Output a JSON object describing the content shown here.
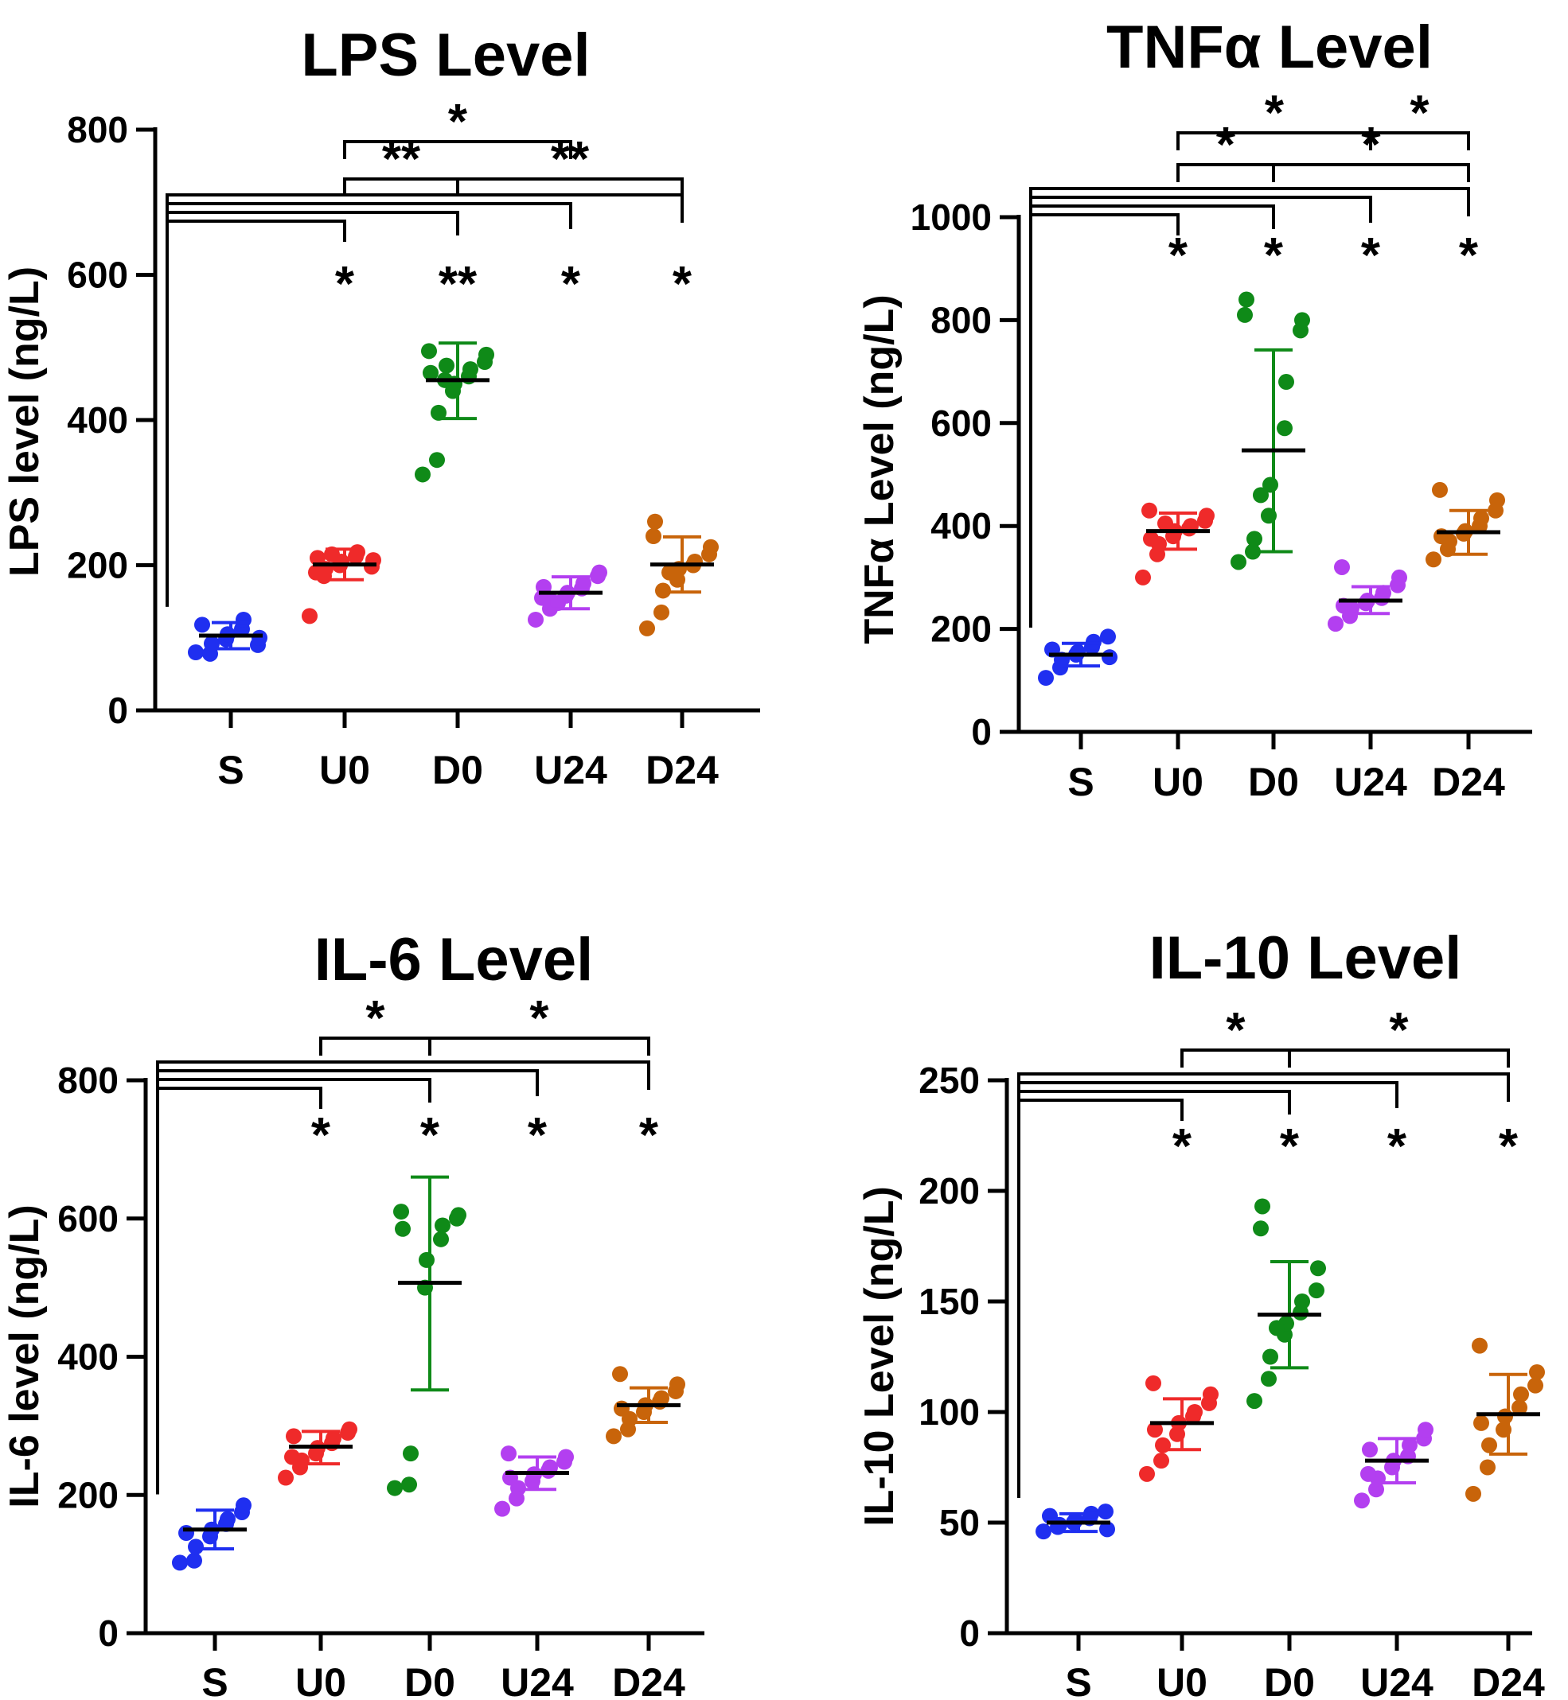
{
  "colors": {
    "S": "#1f2ff0",
    "U0": "#ef2a2a",
    "D0": "#0f8a18",
    "U24": "#b33ff0",
    "D24": "#c8640a",
    "axis": "#000000"
  },
  "chart_data": [
    {
      "type": "scatter",
      "title": "LPS Level",
      "ylabel": "LPS level (ng/L)",
      "ylim": [
        0,
        800
      ],
      "yticks": [
        "0",
        "200",
        "400",
        "600",
        "800"
      ],
      "categories": [
        "S",
        "U0",
        "D0",
        "U24",
        "D24"
      ],
      "groups": [
        {
          "name": "S",
          "mean": 103,
          "sd_low": 85,
          "sd_high": 121,
          "points": [
            80,
            78,
            92,
            98,
            105,
            112,
            125,
            90,
            100,
            118
          ]
        },
        {
          "name": "U0",
          "mean": 201,
          "sd_low": 180,
          "sd_high": 222,
          "points": [
            130,
            185,
            195,
            200,
            205,
            212,
            218,
            198,
            207,
            190,
            210,
            215
          ]
        },
        {
          "name": "D0",
          "mean": 455,
          "sd_low": 402,
          "sd_high": 506,
          "points": [
            325,
            345,
            410,
            440,
            450,
            460,
            470,
            480,
            490,
            495,
            465,
            455,
            475
          ]
        },
        {
          "name": "U24",
          "mean": 162,
          "sd_low": 140,
          "sd_high": 184,
          "points": [
            125,
            140,
            150,
            158,
            162,
            168,
            175,
            185,
            190,
            155,
            170,
            148
          ]
        },
        {
          "name": "D24",
          "mean": 201,
          "sd_low": 163,
          "sd_high": 239,
          "points": [
            113,
            135,
            165,
            180,
            195,
            200,
            205,
            215,
            225,
            240,
            260,
            190
          ]
        }
      ],
      "brackets": [
        {
          "from": "S",
          "to": "U0",
          "label": "*"
        },
        {
          "from": "S",
          "to": "D0",
          "label": "**"
        },
        {
          "from": "S",
          "to": "U24",
          "label": "*"
        },
        {
          "from": "S",
          "to": "D24",
          "label": "*"
        },
        {
          "from": "U0",
          "to": "D0",
          "label": "**"
        },
        {
          "from": "D0",
          "to": "D24",
          "label": "**"
        },
        {
          "from": "U0",
          "to": "U24",
          "label": "*"
        }
      ]
    },
    {
      "type": "scatter",
      "title": "TNFα Level",
      "ylabel": "TNFα Level (ng/L)",
      "ylim": [
        0,
        1000
      ],
      "yticks": [
        "0",
        "200",
        "400",
        "600",
        "800",
        "1000"
      ],
      "categories": [
        "S",
        "U0",
        "D0",
        "U24",
        "D24"
      ],
      "groups": [
        {
          "name": "S",
          "mean": 150,
          "sd_low": 128,
          "sd_high": 172,
          "points": [
            105,
            125,
            140,
            150,
            155,
            165,
            175,
            185,
            145,
            160
          ]
        },
        {
          "name": "U0",
          "mean": 390,
          "sd_low": 355,
          "sd_high": 425,
          "points": [
            300,
            345,
            365,
            380,
            390,
            395,
            400,
            410,
            420,
            430,
            375,
            405
          ]
        },
        {
          "name": "D0",
          "mean": 547,
          "sd_low": 350,
          "sd_high": 742,
          "points": [
            330,
            350,
            375,
            420,
            480,
            590,
            680,
            780,
            800,
            810,
            840,
            460
          ]
        },
        {
          "name": "U24",
          "mean": 255,
          "sd_low": 230,
          "sd_high": 282,
          "points": [
            210,
            225,
            240,
            250,
            255,
            260,
            270,
            285,
            300,
            320,
            245
          ]
        },
        {
          "name": "D24",
          "mean": 388,
          "sd_low": 345,
          "sd_high": 430,
          "points": [
            335,
            355,
            370,
            385,
            390,
            400,
            415,
            430,
            450,
            470,
            380
          ]
        }
      ],
      "brackets": [
        {
          "from": "S",
          "to": "U0",
          "label": "*"
        },
        {
          "from": "S",
          "to": "D0",
          "label": "*"
        },
        {
          "from": "S",
          "to": "U24",
          "label": "*"
        },
        {
          "from": "S",
          "to": "D24",
          "label": "*"
        },
        {
          "from": "U0",
          "to": "D0",
          "label": "*"
        },
        {
          "from": "D0",
          "to": "D24",
          "label": "*"
        },
        {
          "from": "U0",
          "to": "U24",
          "label": "*"
        },
        {
          "from": "U24",
          "to": "D24",
          "label": "*"
        }
      ]
    },
    {
      "type": "scatter",
      "title": "IL-6 Level",
      "ylabel": "IL-6 level (ng/L)",
      "ylim": [
        0,
        800
      ],
      "yticks": [
        "0",
        "200",
        "400",
        "600",
        "800"
      ],
      "categories": [
        "S",
        "U0",
        "D0",
        "U24",
        "D24"
      ],
      "groups": [
        {
          "name": "S",
          "mean": 150,
          "sd_low": 122,
          "sd_high": 178,
          "points": [
            102,
            105,
            125,
            140,
            150,
            158,
            165,
            175,
            185,
            145
          ]
        },
        {
          "name": "U0",
          "mean": 270,
          "sd_low": 245,
          "sd_high": 292,
          "points": [
            225,
            240,
            250,
            260,
            268,
            275,
            282,
            290,
            295,
            255,
            285
          ]
        },
        {
          "name": "D0",
          "mean": 507,
          "sd_low": 352,
          "sd_high": 660,
          "points": [
            210,
            215,
            260,
            500,
            540,
            570,
            590,
            600,
            605,
            610,
            585
          ]
        },
        {
          "name": "U24",
          "mean": 232,
          "sd_low": 208,
          "sd_high": 255,
          "points": [
            180,
            195,
            210,
            220,
            230,
            235,
            240,
            248,
            255,
            260,
            225
          ]
        },
        {
          "name": "D24",
          "mean": 330,
          "sd_low": 305,
          "sd_high": 355,
          "points": [
            285,
            295,
            310,
            320,
            330,
            335,
            340,
            350,
            360,
            375,
            325
          ]
        }
      ],
      "brackets": [
        {
          "from": "S",
          "to": "U0",
          "label": "*"
        },
        {
          "from": "S",
          "to": "D0",
          "label": "*"
        },
        {
          "from": "S",
          "to": "U24",
          "label": "*"
        },
        {
          "from": "S",
          "to": "D24",
          "label": "*"
        },
        {
          "from": "U0",
          "to": "D0",
          "label": "*"
        },
        {
          "from": "D0",
          "to": "D24",
          "label": "*"
        }
      ]
    },
    {
      "type": "scatter",
      "title": "IL-10 Level",
      "ylabel": "IL-10 Level (ng/L)",
      "ylim": [
        0,
        250
      ],
      "yticks": [
        "0",
        "50",
        "100",
        "150",
        "200",
        "250"
      ],
      "categories": [
        "S",
        "U0",
        "D0",
        "U24",
        "D24"
      ],
      "groups": [
        {
          "name": "S",
          "mean": 50,
          "sd_low": 46,
          "sd_high": 54,
          "points": [
            46,
            48,
            49,
            50,
            51,
            52,
            54,
            55,
            47,
            53
          ]
        },
        {
          "name": "U0",
          "mean": 95,
          "sd_low": 83,
          "sd_high": 106,
          "points": [
            72,
            78,
            85,
            90,
            95,
            98,
            100,
            104,
            108,
            113,
            92
          ]
        },
        {
          "name": "D0",
          "mean": 144,
          "sd_low": 120,
          "sd_high": 168,
          "points": [
            105,
            115,
            125,
            135,
            140,
            145,
            150,
            155,
            165,
            183,
            193,
            138
          ]
        },
        {
          "name": "U24",
          "mean": 78,
          "sd_low": 68,
          "sd_high": 88,
          "points": [
            60,
            65,
            70,
            75,
            78,
            80,
            85,
            88,
            92,
            72,
            83
          ]
        },
        {
          "name": "D24",
          "mean": 99,
          "sd_low": 81,
          "sd_high": 117,
          "points": [
            63,
            75,
            85,
            92,
            98,
            102,
            108,
            112,
            118,
            130,
            95
          ]
        }
      ],
      "brackets": [
        {
          "from": "S",
          "to": "U0",
          "label": "*"
        },
        {
          "from": "S",
          "to": "D0",
          "label": "*"
        },
        {
          "from": "S",
          "to": "U24",
          "label": "*"
        },
        {
          "from": "S",
          "to": "D24",
          "label": "*"
        },
        {
          "from": "U0",
          "to": "D0",
          "label": "*"
        },
        {
          "from": "D0",
          "to": "D24",
          "label": "*"
        }
      ]
    }
  ]
}
